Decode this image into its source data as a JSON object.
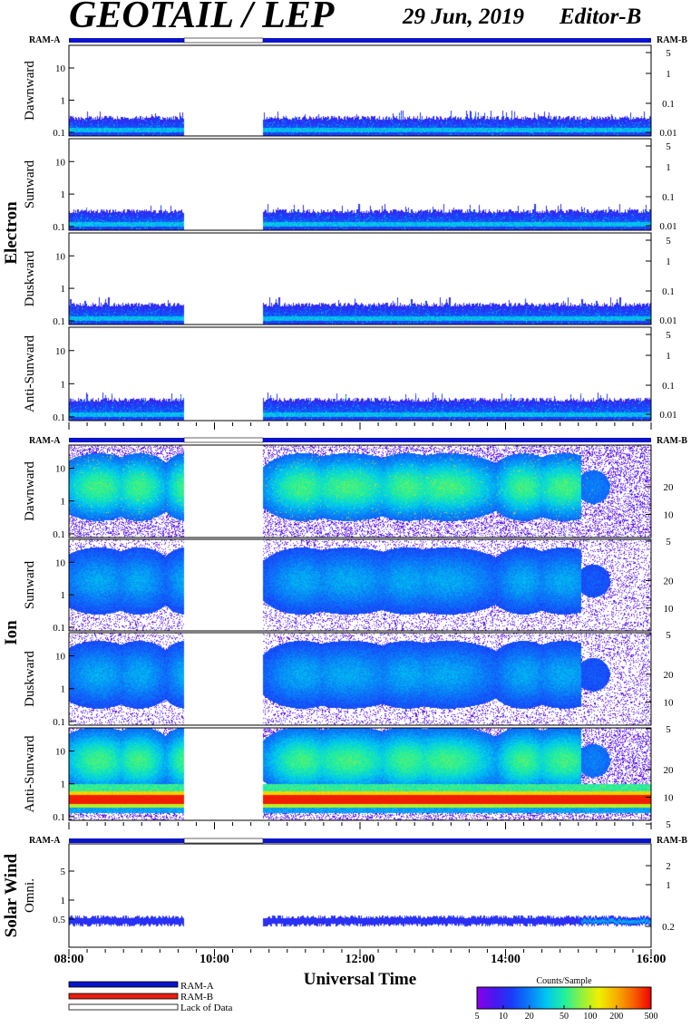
{
  "header": {
    "title": "GEOTAIL / LEP",
    "date": "29 Jun, 2019",
    "editor": "Editor-B"
  },
  "labels": {
    "ram_a": "RAM-A",
    "ram_b": "RAM-B",
    "xlabel": "Universal Time",
    "colorbar_title": "Counts/Sample"
  },
  "legend": [
    {
      "label": "RAM-A",
      "color": "#0a14c8"
    },
    {
      "label": "RAM-B",
      "color": "#e81e10"
    },
    {
      "label": "Lack of Data",
      "color": "#ffffff"
    }
  ],
  "colors": {
    "ram_a": "#0a14c8",
    "ram_b": "#e81e10",
    "axis": "#000000",
    "background": "#ffffff",
    "colormap": [
      "#8a00e8",
      "#4a16f0",
      "#1a3cf8",
      "#0a7cf8",
      "#00c8f0",
      "#20f0a0",
      "#90f040",
      "#f0f000",
      "#f8b000",
      "#f86000",
      "#f00000"
    ]
  },
  "chart_data": {
    "type": "heatmap",
    "x_range": [
      "08:00",
      "16:00"
    ],
    "x_tick_labels": [
      "08:00",
      "10:00",
      "12:00",
      "14:00",
      "16:00"
    ],
    "data_gap": [
      "09:35",
      "10:40"
    ],
    "ram_bar_gap": [
      "09:35",
      "10:40"
    ],
    "colorbar": {
      "scale": "log",
      "range": [
        5,
        500
      ],
      "ticks": [
        "5",
        "10",
        "20",
        "50",
        "100",
        "200",
        "500"
      ]
    },
    "groups": [
      {
        "name": "Electron",
        "axis_left_scale": "log",
        "axis_right_scale": "log",
        "panels": [
          {
            "label": "Dawnward",
            "left_ticks": [
              "10",
              "1",
              "0.1"
            ],
            "right_ticks": [
              "5",
              "1",
              "0.1",
              "0.01"
            ]
          },
          {
            "label": "Sunward",
            "left_ticks": [
              "10",
              "1",
              "0.1"
            ],
            "right_ticks": [
              "5",
              "1",
              "0.1",
              "0.01"
            ]
          },
          {
            "label": "Duskward",
            "left_ticks": [
              "10",
              "1",
              "0.1"
            ],
            "right_ticks": [
              "5",
              "1",
              "0.1",
              "0.01"
            ]
          },
          {
            "label": "Anti-Sunward",
            "left_ticks": [
              "10",
              "1",
              "0.1"
            ],
            "right_ticks": [
              "5",
              "1",
              "0.1",
              "0.01"
            ]
          }
        ]
      },
      {
        "name": "Ion",
        "axis_left_scale": "log",
        "axis_right_scale": "sqrt",
        "panels": [
          {
            "label": "Dawnward",
            "left_ticks": [
              "10",
              "1",
              "0.1"
            ],
            "right_ticks": [
              "20",
              "10",
              "5"
            ]
          },
          {
            "label": "Sunward",
            "left_ticks": [
              "10",
              "1",
              "0.1"
            ],
            "right_ticks": [
              "20",
              "10",
              "5"
            ]
          },
          {
            "label": "Duskward",
            "left_ticks": [
              "10",
              "1",
              "0.1"
            ],
            "right_ticks": [
              "20",
              "10",
              "5"
            ]
          },
          {
            "label": "Anti-Sunward",
            "left_ticks": [
              "10",
              "1",
              "0.1"
            ],
            "right_ticks": [
              "20",
              "10",
              "5"
            ]
          }
        ]
      },
      {
        "name": "Solar Wind",
        "axis_left_scale": "log",
        "axis_right_scale": "log",
        "panels": [
          {
            "label": "Omni.",
            "left_ticks": [
              "5",
              "1",
              "0.5"
            ],
            "right_ticks": [
              "2",
              "1",
              "0.2"
            ]
          }
        ]
      }
    ]
  }
}
